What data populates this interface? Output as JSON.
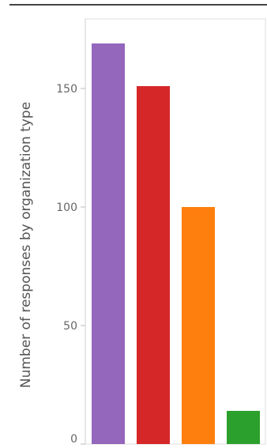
{
  "chart_data": {
    "type": "bar",
    "categories": [
      "",
      "",
      "",
      ""
    ],
    "values": [
      169,
      151,
      100,
      14
    ],
    "colors": [
      "#9467bd",
      "#d62728",
      "#ff7f0e",
      "#2ca02c"
    ],
    "ylabel": "Number of responses by organization  type",
    "ylim": [
      0,
      180
    ],
    "yticks": [
      0,
      50,
      100,
      150
    ],
    "grid": false,
    "legend": "none"
  }
}
